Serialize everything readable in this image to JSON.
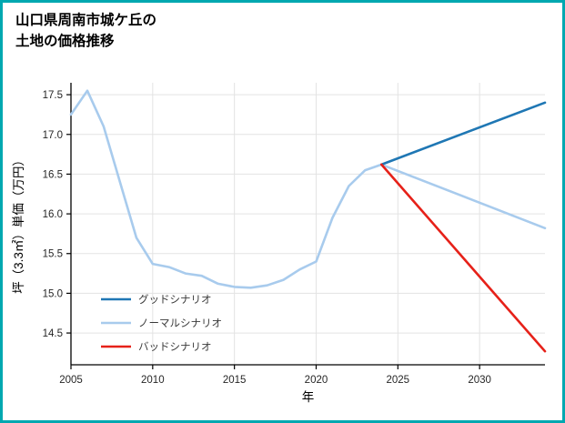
{
  "title": {
    "line1": "山口県周南市城ケ丘の",
    "line2": "土地の価格推移"
  },
  "chart_data": {
    "type": "line",
    "title": "山口県周南市城ケ丘の土地の価格推移",
    "xlabel": "年",
    "ylabel": "坪（3.3㎡）単価（万円）",
    "xlim": [
      2005,
      2034
    ],
    "ylim": [
      14.1,
      17.65
    ],
    "grid": true,
    "legend_position": "lower-left-inside",
    "xticks": [
      {
        "v": 2005,
        "label": "2005"
      },
      {
        "v": 2010,
        "label": "2010"
      },
      {
        "v": 2015,
        "label": "2015"
      },
      {
        "v": 2020,
        "label": "2020"
      },
      {
        "v": 2025,
        "label": "2025"
      },
      {
        "v": 2030,
        "label": "2030"
      }
    ],
    "yticks": [
      {
        "v": 14.5,
        "label": "14.5"
      },
      {
        "v": 15.0,
        "label": "15.0"
      },
      {
        "v": 15.5,
        "label": "15.5"
      },
      {
        "v": 16.0,
        "label": "16.0"
      },
      {
        "v": 16.5,
        "label": "16.5"
      },
      {
        "v": 17.0,
        "label": "17.0"
      },
      {
        "v": 17.5,
        "label": "17.5"
      }
    ],
    "series": [
      {
        "id": "good-scenario",
        "name": "グッドシナリオ",
        "color": "#1f77b4",
        "x": [
          2024,
          2034
        ],
        "y": [
          16.62,
          17.4
        ]
      },
      {
        "id": "normal-scenario",
        "name": "ノーマルシナリオ",
        "color": "#a8cbed",
        "x": [
          2005,
          2006,
          2007,
          2008,
          2009,
          2010,
          2011,
          2012,
          2013,
          2014,
          2015,
          2016,
          2017,
          2018,
          2019,
          2020,
          2021,
          2022,
          2023,
          2024,
          2034
        ],
        "y": [
          17.25,
          17.55,
          17.1,
          16.4,
          15.7,
          15.37,
          15.33,
          15.25,
          15.22,
          15.12,
          15.08,
          15.07,
          15.1,
          15.17,
          15.3,
          15.4,
          15.95,
          16.35,
          16.55,
          16.62,
          15.82
        ]
      },
      {
        "id": "bad-scenario",
        "name": "バッドシナリオ",
        "color": "#e62119",
        "x": [
          2024,
          2034
        ],
        "y": [
          16.62,
          14.27
        ]
      }
    ],
    "legend": [
      "グッドシナリオ",
      "ノーマルシナリオ",
      "バッドシナリオ"
    ]
  },
  "colors": {
    "frame_border": "#00a8b0",
    "grid": "#e3e3e3",
    "spine": "#000000",
    "tick_text": "#262626",
    "legend_text": "#3a3a3a",
    "good": "#1f77b4",
    "normal": "#a8cbed",
    "bad": "#e62119"
  }
}
